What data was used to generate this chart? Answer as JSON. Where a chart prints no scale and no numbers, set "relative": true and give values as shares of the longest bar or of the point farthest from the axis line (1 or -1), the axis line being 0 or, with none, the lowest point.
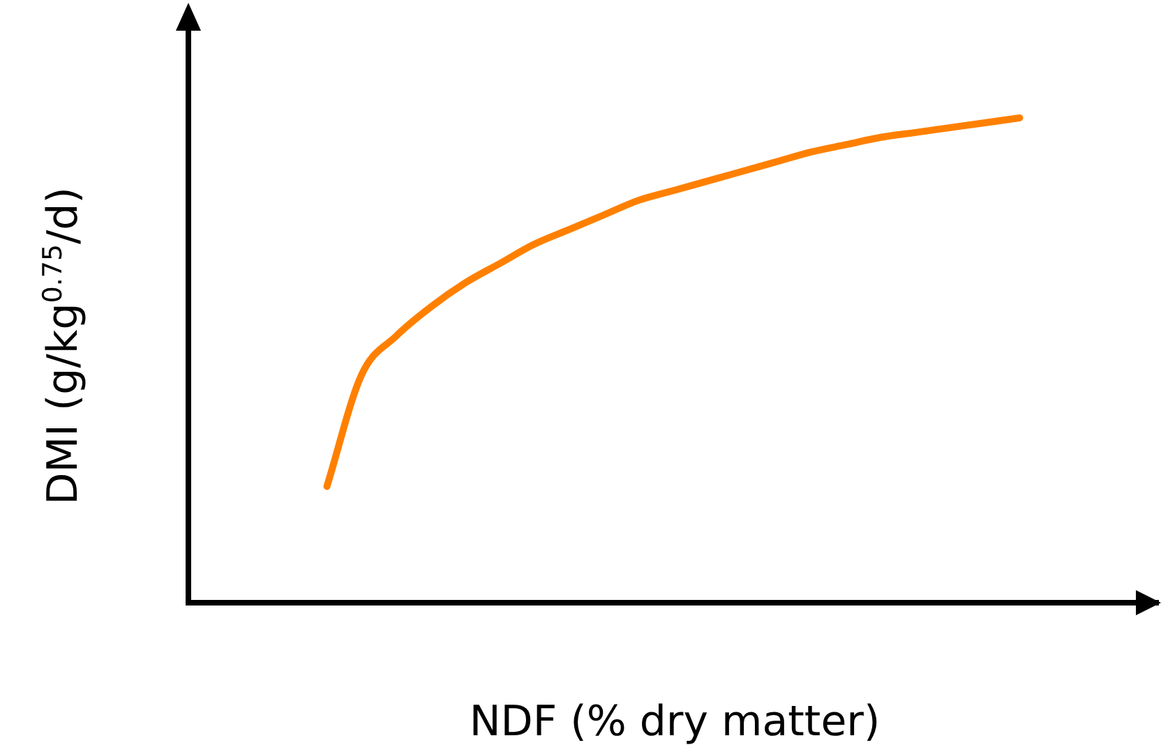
{
  "chart_data": {
    "type": "line",
    "relative": true,
    "xlabel": "NDF (% dry matter)",
    "ylabel": "DMI (g/kg$^{0.75}$/d)",
    "color": "#ff8000",
    "grid": false,
    "legend": false,
    "marker": "none",
    "line_style": "solid",
    "categories": [
      null,
      null,
      null,
      null,
      null,
      null,
      null,
      null,
      null,
      null,
      null,
      null,
      null,
      null,
      null,
      null,
      null,
      null,
      null,
      null,
      null,
      null,
      null,
      null,
      null,
      null,
      null,
      null,
      null
    ],
    "values": [
      null,
      null,
      null,
      null,
      0.24,
      0.47,
      0.55,
      0.61,
      0.66,
      0.7,
      0.74,
      0.77,
      0.8,
      0.83,
      0.85,
      0.87,
      0.89,
      0.91,
      0.93,
      0.945,
      0.96,
      0.97,
      0.98,
      0.99,
      1,
      null,
      null,
      null,
      null
    ]
  }
}
